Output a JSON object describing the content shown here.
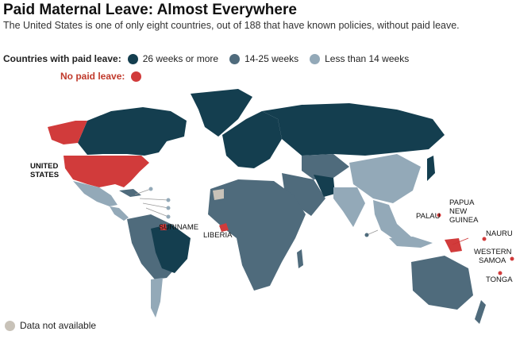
{
  "header": {
    "title": "Paid Maternal Leave: Almost Everywhere",
    "subtitle": "The United States is one of only eight countries, out of 188 that have known policies, without paid leave."
  },
  "legend": {
    "paid_heading": "Countries with paid leave:",
    "no_paid_heading": "No paid leave:",
    "items": [
      {
        "label": "26 weeks or more",
        "color": "#143e4f"
      },
      {
        "label": "14-25 weeks",
        "color": "#4f6b7c"
      },
      {
        "label": "Less than 14 weeks",
        "color": "#93a9b8"
      }
    ],
    "no_paid_color": "#d13b3b",
    "na_label": "Data not available",
    "na_color": "#c8c2b8"
  },
  "map_labels": {
    "united_states_1": "UNITED",
    "united_states_2": "STATES",
    "suriname": "SURINAME",
    "liberia": "LIBERIA",
    "palau": "PALAU",
    "png_1": "PAPUA",
    "png_2": "NEW",
    "png_3": "GUINEA",
    "nauru": "NAURU",
    "samoa_1": "WESTERN",
    "samoa_2": "SAMOA",
    "tonga": "TONGA"
  }
}
